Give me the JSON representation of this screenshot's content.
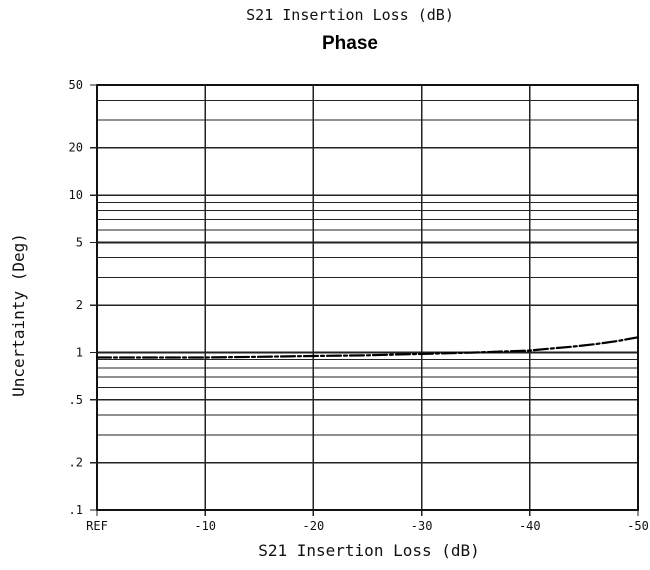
{
  "chart_data": {
    "type": "line",
    "title": "S21 Insertion Loss (dB)",
    "subtitle": "Phase",
    "xlabel": "S21 Insertion Loss (dB)",
    "ylabel": "Uncertainty (Deg)",
    "xlim": [
      0,
      -50
    ],
    "ylim": [
      0.1,
      50
    ],
    "yscale": "log",
    "grid": true,
    "x_ticks": [
      {
        "value": 0,
        "label": "REF"
      },
      {
        "value": -10,
        "label": "-10"
      },
      {
        "value": -20,
        "label": "-20"
      },
      {
        "value": -30,
        "label": "-30"
      },
      {
        "value": -40,
        "label": "-40"
      },
      {
        "value": -50,
        "label": "-50"
      }
    ],
    "y_ticks": [
      {
        "value": 50,
        "label": "50"
      },
      {
        "value": 20,
        "label": "20"
      },
      {
        "value": 10,
        "label": "10"
      },
      {
        "value": 5,
        "label": "5"
      },
      {
        "value": 2,
        "label": "2"
      },
      {
        "value": 1,
        "label": "1"
      },
      {
        "value": 0.5,
        "label": ".5"
      },
      {
        "value": 0.2,
        "label": ".2"
      },
      {
        "value": 0.1,
        "label": ".1"
      }
    ],
    "series": [
      {
        "x": [
          0,
          -5,
          -10,
          -15,
          -20,
          -25,
          -30,
          -35,
          -40,
          -42,
          -44,
          -46,
          -48,
          -50
        ],
        "y": [
          0.93,
          0.93,
          0.93,
          0.94,
          0.95,
          0.96,
          0.98,
          1.0,
          1.03,
          1.06,
          1.09,
          1.13,
          1.18,
          1.25
        ]
      }
    ]
  }
}
